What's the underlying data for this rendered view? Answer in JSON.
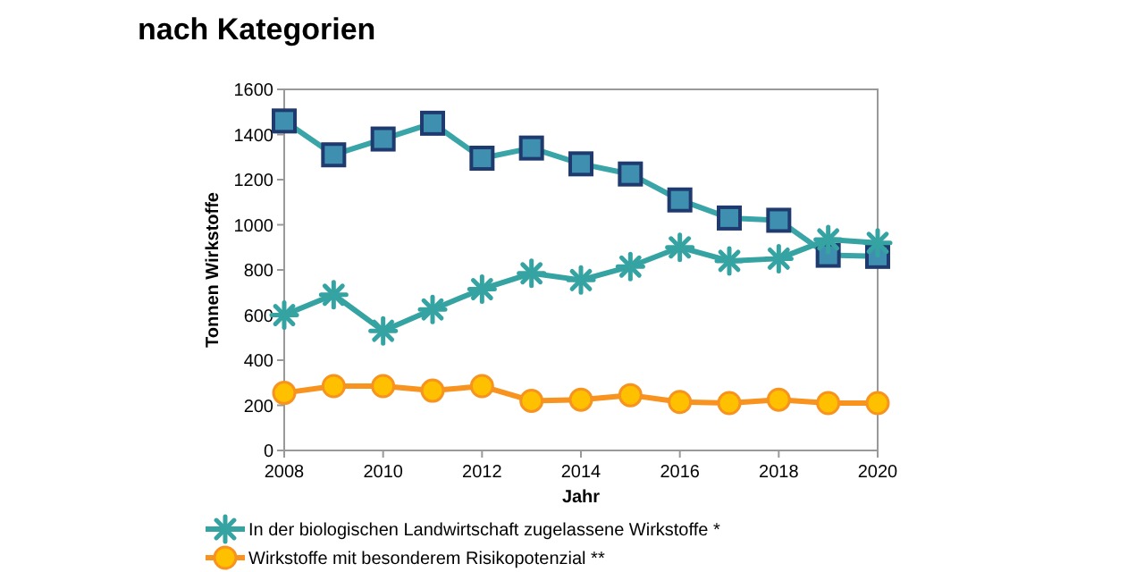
{
  "chart_data": {
    "type": "line",
    "title": "nach Kategorien",
    "xlabel": "Jahr",
    "ylabel": "Tonnen Wirkstoffe",
    "x": [
      2008,
      2009,
      2010,
      2011,
      2012,
      2013,
      2014,
      2015,
      2016,
      2017,
      2018,
      2019,
      2020
    ],
    "series": [
      {
        "color": "#3aa5a8",
        "marker": "square",
        "values": [
          1460,
          1310,
          1380,
          1450,
          1295,
          1340,
          1270,
          1225,
          1110,
          1030,
          1020,
          865,
          860
        ]
      },
      {
        "name": "In der biologischen Landwirtschaft zugelassene Wirkstoffe *",
        "color": "#36a3a3",
        "marker": "cross",
        "values": [
          600,
          690,
          530,
          625,
          715,
          785,
          755,
          815,
          900,
          840,
          850,
          935,
          920
        ]
      },
      {
        "name": "Wirkstoffe mit besonderem Risikopotenzial **",
        "color": "#f7931e",
        "marker": "circle",
        "values": [
          255,
          285,
          285,
          265,
          285,
          220,
          225,
          245,
          215,
          210,
          225,
          210,
          210
        ]
      }
    ],
    "xlim": [
      2008,
      2020
    ],
    "xticks": [
      2008,
      2010,
      2012,
      2014,
      2016,
      2018,
      2020
    ],
    "ylim": [
      0,
      1600
    ],
    "yticks": [
      0,
      200,
      400,
      600,
      800,
      1000,
      1200,
      1400,
      1600
    ],
    "grid": false,
    "legend": "bottom"
  }
}
